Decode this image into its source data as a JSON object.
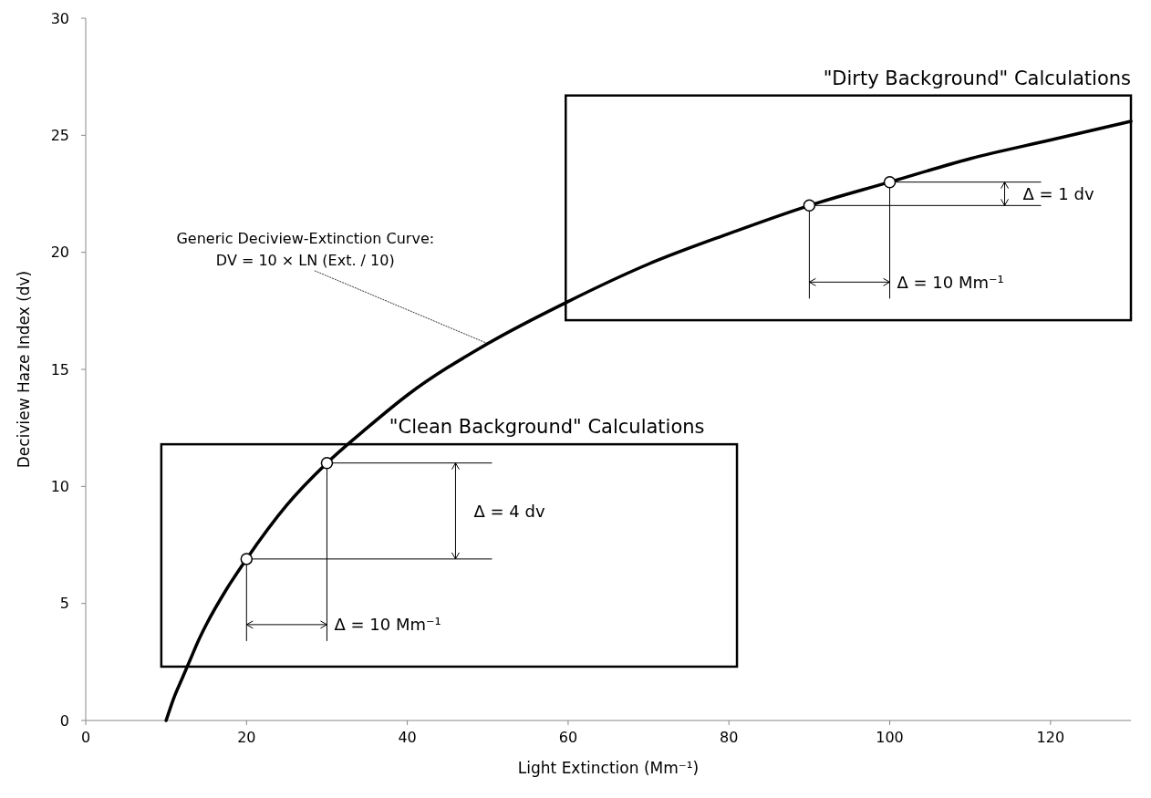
{
  "chart_data": {
    "type": "line",
    "xlabel": "Light Extinction (Mm⁻¹)",
    "ylabel": "Deciview Haze Index (dv)",
    "xlim": [
      0,
      130
    ],
    "xticks": [
      0,
      20,
      40,
      60,
      80,
      100,
      120
    ],
    "ylim": [
      0,
      30
    ],
    "yticks": [
      0,
      5,
      10,
      15,
      20,
      25,
      30
    ],
    "grid": false,
    "series": [
      {
        "color": "#000000",
        "marker": "none",
        "x": [
          10,
          11,
          12,
          13,
          14,
          15,
          17.5,
          20,
          25,
          30,
          35,
          40,
          50,
          60,
          70,
          80,
          90,
          100,
          110,
          120,
          130
        ],
        "values": [
          0,
          1.0,
          1.8,
          2.6,
          3.4,
          4.1,
          5.6,
          6.9,
          9.2,
          11.0,
          12.5,
          13.9,
          16.1,
          17.9,
          19.5,
          20.8,
          22.0,
          23.0,
          24.0,
          24.8,
          25.6
        ]
      },
      {
        "type": "scatter",
        "color": "#000000",
        "marker": "circle",
        "x": [
          20,
          30,
          90,
          100
        ],
        "values": [
          6.9,
          11.0,
          22.0,
          23.0
        ]
      }
    ],
    "annotations": [
      {
        "text": "Generic Deciview-Extinction Curve:\nDV = 10 × LN (Ext. / 10)",
        "x": 50,
        "y": 16.1
      },
      "\"Clean Background\" Calculations",
      "\"Dirty Background\" Calculations",
      "Δ = 4 dv",
      {
        "text": "Δ = 10 Mm⁻¹",
        "x": 30,
        "y": 11.0
      },
      {
        "text": "Δ = 1 dv",
        "x": 100,
        "y": 23.0
      },
      {
        "text": "Δ = 10 Mm⁻¹",
        "x": 100,
        "y": 23.0
      }
    ]
  }
}
